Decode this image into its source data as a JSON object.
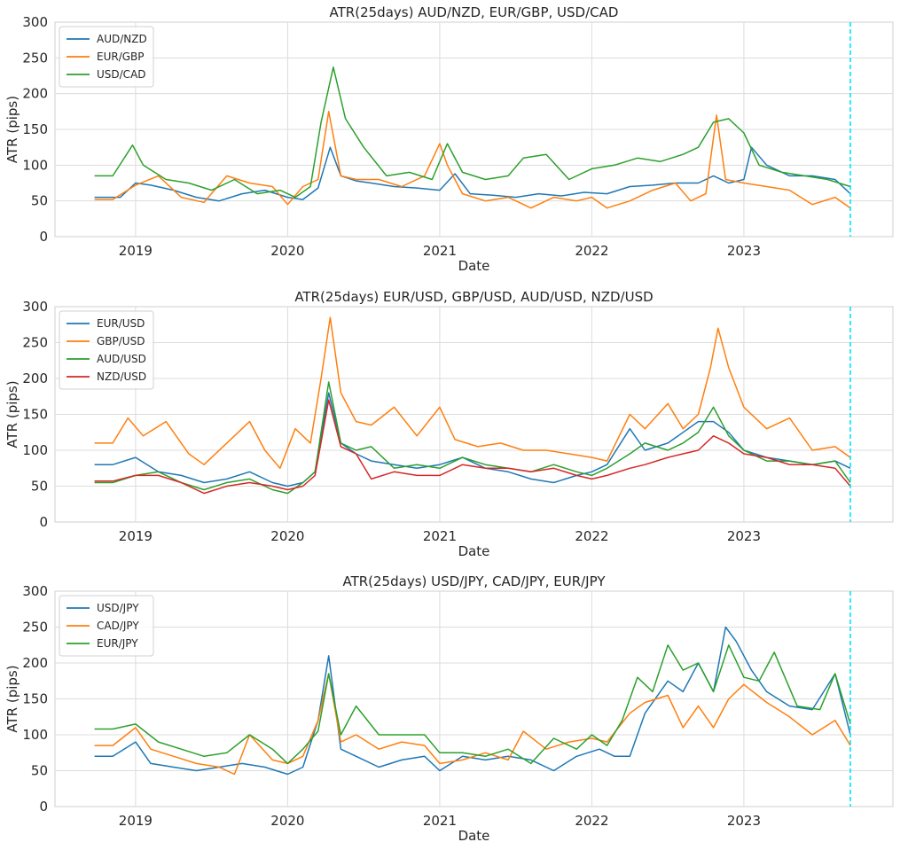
{
  "chart_data": [
    {
      "type": "line",
      "title": "ATR(25days)  AUD/NZD, EUR/GBP, USD/CAD",
      "xlabel": "Date",
      "ylabel": "ATR (pips)",
      "ylim": [
        0,
        300
      ],
      "yticks": [
        "0",
        "50",
        "100",
        "150",
        "200",
        "250",
        "300"
      ],
      "xlim": [
        2018.47,
        2023.98
      ],
      "xticks": [
        "2019",
        "2020",
        "2021",
        "2022",
        "2023"
      ],
      "grid": true,
      "legend_position": "top-left",
      "vline": {
        "x": 2023.7,
        "color": "#00e5ff",
        "style": "dashed"
      },
      "series": [
        {
          "name": "AUD/NZD",
          "color": "#1f77b4",
          "x": [
            2018.73,
            2018.9,
            2019.0,
            2019.1,
            2019.25,
            2019.4,
            2019.55,
            2019.7,
            2019.85,
            2020.0,
            2020.1,
            2020.2,
            2020.28,
            2020.35,
            2020.45,
            2020.55,
            2020.7,
            2020.85,
            2021.0,
            2021.1,
            2021.2,
            2021.35,
            2021.5,
            2021.65,
            2021.8,
            2021.95,
            2022.1,
            2022.25,
            2022.4,
            2022.55,
            2022.7,
            2022.8,
            2022.9,
            2023.0,
            2023.05,
            2023.15,
            2023.3,
            2023.45,
            2023.6,
            2023.7
          ],
          "values": [
            55,
            55,
            75,
            72,
            65,
            55,
            50,
            60,
            65,
            55,
            52,
            68,
            125,
            85,
            78,
            75,
            70,
            68,
            65,
            88,
            60,
            58,
            55,
            60,
            57,
            62,
            60,
            70,
            72,
            75,
            75,
            85,
            75,
            80,
            125,
            100,
            85,
            85,
            80,
            60
          ]
        },
        {
          "name": "EUR/GBP",
          "color": "#ff7f0e",
          "x": [
            2018.73,
            2018.85,
            2019.0,
            2019.15,
            2019.3,
            2019.45,
            2019.6,
            2019.75,
            2019.9,
            2020.0,
            2020.1,
            2020.2,
            2020.27,
            2020.35,
            2020.45,
            2020.6,
            2020.75,
            2020.9,
            2021.0,
            2021.05,
            2021.15,
            2021.3,
            2021.45,
            2021.6,
            2021.75,
            2021.9,
            2022.0,
            2022.1,
            2022.25,
            2022.4,
            2022.55,
            2022.65,
            2022.75,
            2022.82,
            2022.88,
            2023.0,
            2023.15,
            2023.3,
            2023.45,
            2023.6,
            2023.7
          ],
          "values": [
            52,
            52,
            72,
            85,
            55,
            48,
            85,
            75,
            70,
            45,
            70,
            80,
            175,
            85,
            80,
            80,
            70,
            85,
            130,
            100,
            60,
            50,
            55,
            40,
            55,
            50,
            55,
            40,
            50,
            65,
            75,
            50,
            60,
            170,
            80,
            75,
            70,
            65,
            45,
            55,
            40
          ]
        },
        {
          "name": "USD/CAD",
          "color": "#2ca02c",
          "x": [
            2018.73,
            2018.85,
            2018.98,
            2019.05,
            2019.2,
            2019.35,
            2019.5,
            2019.65,
            2019.8,
            2019.95,
            2020.05,
            2020.15,
            2020.22,
            2020.3,
            2020.38,
            2020.5,
            2020.65,
            2020.8,
            2020.95,
            2021.05,
            2021.15,
            2021.3,
            2021.45,
            2021.55,
            2021.7,
            2021.85,
            2022.0,
            2022.15,
            2022.3,
            2022.45,
            2022.6,
            2022.7,
            2022.8,
            2022.9,
            2023.0,
            2023.1,
            2023.25,
            2023.4,
            2023.55,
            2023.7
          ],
          "values": [
            85,
            85,
            128,
            100,
            80,
            75,
            65,
            80,
            60,
            65,
            55,
            70,
            160,
            237,
            165,
            125,
            85,
            90,
            80,
            130,
            90,
            80,
            85,
            110,
            115,
            80,
            95,
            100,
            110,
            105,
            115,
            125,
            160,
            165,
            145,
            100,
            90,
            85,
            80,
            70
          ]
        }
      ]
    },
    {
      "type": "line",
      "title": "ATR(25days) EUR/USD, GBP/USD, AUD/USD, NZD/USD",
      "xlabel": "Date",
      "ylabel": "ATR (pips)",
      "ylim": [
        0,
        300
      ],
      "yticks": [
        "0",
        "50",
        "100",
        "150",
        "200",
        "250",
        "300"
      ],
      "xlim": [
        2018.47,
        2023.98
      ],
      "xticks": [
        "2019",
        "2020",
        "2021",
        "2022",
        "2023"
      ],
      "grid": true,
      "legend_position": "top-left",
      "vline": {
        "x": 2023.7,
        "color": "#00e5ff",
        "style": "dashed"
      },
      "series": [
        {
          "name": "EUR/USD",
          "color": "#1f77b4",
          "x": [
            2018.73,
            2018.85,
            2019.0,
            2019.15,
            2019.3,
            2019.45,
            2019.6,
            2019.75,
            2019.9,
            2020.0,
            2020.1,
            2020.18,
            2020.27,
            2020.35,
            2020.45,
            2020.55,
            2020.7,
            2020.85,
            2021.0,
            2021.15,
            2021.3,
            2021.45,
            2021.6,
            2021.75,
            2021.9,
            2022.0,
            2022.1,
            2022.25,
            2022.35,
            2022.5,
            2022.6,
            2022.7,
            2022.8,
            2022.9,
            2023.0,
            2023.15,
            2023.3,
            2023.45,
            2023.6,
            2023.7
          ],
          "values": [
            80,
            80,
            90,
            70,
            65,
            55,
            60,
            70,
            55,
            50,
            55,
            70,
            180,
            110,
            95,
            85,
            80,
            75,
            80,
            90,
            75,
            70,
            60,
            55,
            65,
            70,
            80,
            130,
            100,
            110,
            125,
            140,
            140,
            125,
            100,
            90,
            85,
            80,
            85,
            75
          ]
        },
        {
          "name": "GBP/USD",
          "color": "#ff7f0e",
          "x": [
            2018.73,
            2018.85,
            2018.95,
            2019.05,
            2019.2,
            2019.35,
            2019.45,
            2019.6,
            2019.75,
            2019.85,
            2019.95,
            2020.05,
            2020.15,
            2020.22,
            2020.28,
            2020.35,
            2020.45,
            2020.55,
            2020.7,
            2020.85,
            2021.0,
            2021.1,
            2021.25,
            2021.4,
            2021.55,
            2021.7,
            2021.85,
            2022.0,
            2022.1,
            2022.25,
            2022.35,
            2022.5,
            2022.6,
            2022.7,
            2022.78,
            2022.83,
            2022.9,
            2023.0,
            2023.15,
            2023.3,
            2023.45,
            2023.6,
            2023.7
          ],
          "values": [
            110,
            110,
            145,
            120,
            140,
            95,
            80,
            110,
            140,
            100,
            75,
            130,
            110,
            200,
            285,
            180,
            140,
            135,
            160,
            120,
            160,
            115,
            105,
            110,
            100,
            100,
            95,
            90,
            85,
            150,
            130,
            165,
            130,
            150,
            215,
            270,
            215,
            160,
            130,
            145,
            100,
            105,
            90
          ]
        },
        {
          "name": "AUD/USD",
          "color": "#2ca02c",
          "x": [
            2018.73,
            2018.85,
            2019.0,
            2019.15,
            2019.3,
            2019.45,
            2019.6,
            2019.75,
            2019.9,
            2020.0,
            2020.1,
            2020.18,
            2020.27,
            2020.35,
            2020.45,
            2020.55,
            2020.7,
            2020.85,
            2021.0,
            2021.15,
            2021.3,
            2021.45,
            2021.6,
            2021.75,
            2021.9,
            2022.0,
            2022.1,
            2022.25,
            2022.35,
            2022.5,
            2022.6,
            2022.7,
            2022.8,
            2022.9,
            2023.0,
            2023.15,
            2023.3,
            2023.45,
            2023.6,
            2023.7
          ],
          "values": [
            55,
            55,
            65,
            70,
            55,
            45,
            55,
            60,
            45,
            40,
            55,
            70,
            195,
            110,
            100,
            105,
            75,
            80,
            75,
            90,
            80,
            75,
            70,
            80,
            70,
            65,
            75,
            95,
            110,
            100,
            110,
            125,
            160,
            120,
            100,
            85,
            85,
            80,
            85,
            55
          ]
        },
        {
          "name": "NZD/USD",
          "color": "#d62728",
          "x": [
            2018.73,
            2018.85,
            2019.0,
            2019.15,
            2019.3,
            2019.45,
            2019.6,
            2019.75,
            2019.9,
            2020.0,
            2020.1,
            2020.18,
            2020.27,
            2020.35,
            2020.45,
            2020.55,
            2020.7,
            2020.85,
            2021.0,
            2021.15,
            2021.3,
            2021.45,
            2021.6,
            2021.75,
            2021.9,
            2022.0,
            2022.1,
            2022.25,
            2022.35,
            2022.5,
            2022.6,
            2022.7,
            2022.8,
            2022.9,
            2023.0,
            2023.15,
            2023.3,
            2023.45,
            2023.6,
            2023.7
          ],
          "values": [
            57,
            57,
            65,
            65,
            55,
            40,
            50,
            55,
            50,
            45,
            50,
            65,
            170,
            105,
            95,
            60,
            70,
            65,
            65,
            80,
            75,
            75,
            70,
            75,
            65,
            60,
            65,
            75,
            80,
            90,
            95,
            100,
            120,
            110,
            95,
            90,
            80,
            80,
            75,
            50
          ]
        }
      ]
    },
    {
      "type": "line",
      "title": "ATR(25days) USD/JPY, CAD/JPY, EUR/JPY",
      "xlabel": "Date",
      "ylabel": "ATR (pips)",
      "ylim": [
        0,
        300
      ],
      "yticks": [
        "0",
        "50",
        "100",
        "150",
        "200",
        "250",
        "300"
      ],
      "xlim": [
        2018.47,
        2023.98
      ],
      "xticks": [
        "2019",
        "2020",
        "2021",
        "2022",
        "2023"
      ],
      "grid": true,
      "legend_position": "top-left",
      "vline": {
        "x": 2023.7,
        "color": "#00e5ff",
        "style": "dashed"
      },
      "series": [
        {
          "name": "USD/JPY",
          "color": "#1f77b4",
          "x": [
            2018.73,
            2018.85,
            2019.0,
            2019.1,
            2019.25,
            2019.4,
            2019.55,
            2019.7,
            2019.85,
            2020.0,
            2020.1,
            2020.2,
            2020.27,
            2020.35,
            2020.45,
            2020.6,
            2020.75,
            2020.9,
            2021.0,
            2021.15,
            2021.3,
            2021.45,
            2021.6,
            2021.75,
            2021.9,
            2022.05,
            2022.15,
            2022.25,
            2022.35,
            2022.5,
            2022.6,
            2022.7,
            2022.8,
            2022.88,
            2022.95,
            2023.05,
            2023.15,
            2023.3,
            2023.45,
            2023.6,
            2023.7
          ],
          "values": [
            70,
            70,
            90,
            60,
            55,
            50,
            55,
            60,
            55,
            45,
            55,
            120,
            210,
            80,
            70,
            55,
            65,
            70,
            50,
            70,
            65,
            70,
            65,
            50,
            70,
            80,
            70,
            70,
            130,
            175,
            160,
            200,
            160,
            250,
            230,
            190,
            160,
            140,
            135,
            185,
            100
          ]
        },
        {
          "name": "CAD/JPY",
          "color": "#ff7f0e",
          "x": [
            2018.73,
            2018.85,
            2019.0,
            2019.1,
            2019.25,
            2019.4,
            2019.55,
            2019.65,
            2019.75,
            2019.9,
            2020.0,
            2020.1,
            2020.2,
            2020.27,
            2020.35,
            2020.45,
            2020.6,
            2020.75,
            2020.9,
            2021.0,
            2021.15,
            2021.3,
            2021.45,
            2021.55,
            2021.7,
            2021.85,
            2022.0,
            2022.1,
            2022.25,
            2022.35,
            2022.5,
            2022.6,
            2022.7,
            2022.8,
            2022.9,
            2023.0,
            2023.15,
            2023.3,
            2023.45,
            2023.6,
            2023.7
          ],
          "values": [
            85,
            85,
            110,
            80,
            70,
            60,
            55,
            45,
            100,
            65,
            60,
            70,
            120,
            185,
            90,
            100,
            80,
            90,
            85,
            60,
            65,
            75,
            65,
            105,
            80,
            90,
            95,
            90,
            130,
            145,
            155,
            110,
            140,
            110,
            150,
            170,
            145,
            125,
            100,
            120,
            85
          ]
        },
        {
          "name": "EUR/JPY",
          "color": "#2ca02c",
          "x": [
            2018.73,
            2018.85,
            2019.0,
            2019.15,
            2019.3,
            2019.45,
            2019.6,
            2019.75,
            2019.9,
            2020.0,
            2020.1,
            2020.2,
            2020.27,
            2020.35,
            2020.45,
            2020.6,
            2020.75,
            2020.9,
            2021.0,
            2021.15,
            2021.3,
            2021.45,
            2021.6,
            2021.75,
            2021.9,
            2022.0,
            2022.1,
            2022.2,
            2022.3,
            2022.4,
            2022.5,
            2022.6,
            2022.7,
            2022.8,
            2022.9,
            2023.0,
            2023.1,
            2023.2,
            2023.35,
            2023.5,
            2023.6,
            2023.7
          ],
          "values": [
            108,
            108,
            115,
            90,
            80,
            70,
            75,
            100,
            80,
            60,
            80,
            105,
            185,
            100,
            140,
            100,
            100,
            100,
            75,
            75,
            70,
            80,
            60,
            95,
            80,
            100,
            85,
            120,
            180,
            160,
            225,
            190,
            200,
            160,
            225,
            180,
            175,
            215,
            140,
            135,
            185,
            115
          ]
        }
      ]
    }
  ]
}
